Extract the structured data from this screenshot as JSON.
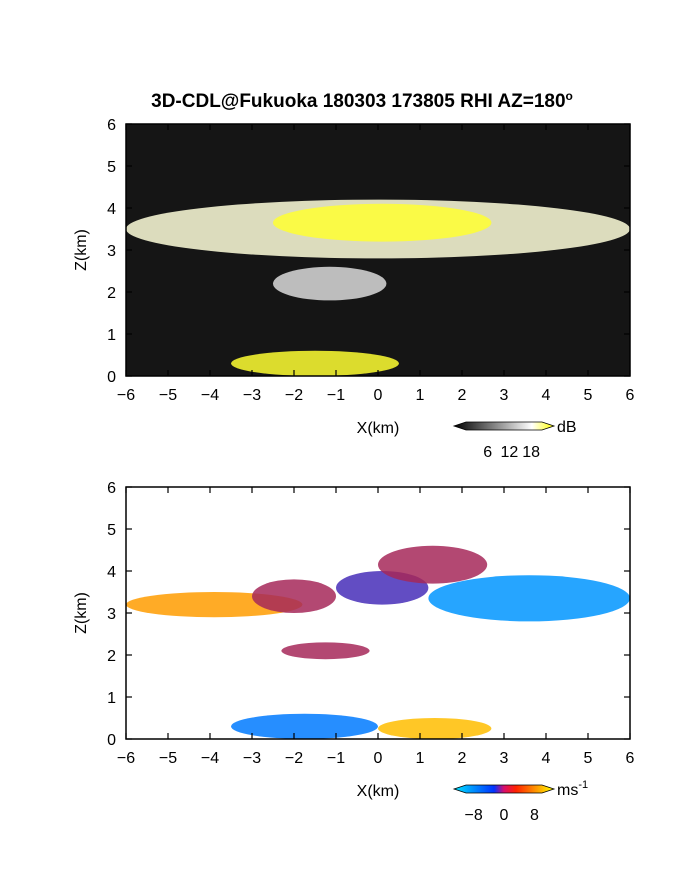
{
  "title": "3D-CDL@Fukuoka 180303 173805 RHI AZ=180",
  "title_degree": "o",
  "chart_data": [
    {
      "type": "heatmap",
      "panel": "reflectivity",
      "xlabel": "X(km)",
      "ylabel": "Z(km)",
      "xlim": [
        -6,
        6
      ],
      "ylim": [
        0,
        6
      ],
      "x_ticks": [
        "-6",
        "-5",
        "-4",
        "-3",
        "-2",
        "-1",
        "0",
        "1",
        "2",
        "3",
        "4",
        "5",
        "6"
      ],
      "y_ticks": [
        "0",
        "1",
        "2",
        "3",
        "4",
        "5",
        "6"
      ],
      "background": "#151515",
      "colorbar": {
        "unit": "dB",
        "ticks": [
          "6",
          "12",
          "18"
        ],
        "range": [
          0,
          21
        ],
        "colors": [
          "#000000",
          "#ffffff",
          "#ffff00"
        ]
      },
      "features": [
        {
          "name": "cloud layer",
          "x": [
            -6,
            6
          ],
          "z": [
            2.8,
            4.2
          ],
          "value": 12
        },
        {
          "name": "strong echo band",
          "x": [
            -2.5,
            2.7
          ],
          "z": [
            3.2,
            4.1
          ],
          "value": 19
        },
        {
          "name": "virga",
          "x": [
            -2.5,
            0.2
          ],
          "z": [
            1.8,
            2.6
          ],
          "value": 9
        },
        {
          "name": "surface echo",
          "x": [
            -3.5,
            0.5
          ],
          "z": [
            0,
            0.6
          ],
          "value": 19
        }
      ]
    },
    {
      "type": "heatmap",
      "panel": "doppler_velocity",
      "xlabel": "X(km)",
      "ylabel": "Z(km)",
      "xlim": [
        -6,
        6
      ],
      "ylim": [
        0,
        6
      ],
      "x_ticks": [
        "-6",
        "-5",
        "-4",
        "-3",
        "-2",
        "-1",
        "0",
        "1",
        "2",
        "3",
        "4",
        "5",
        "6"
      ],
      "y_ticks": [
        "0",
        "1",
        "2",
        "3",
        "4",
        "5",
        "6"
      ],
      "background": "#ffffff",
      "colorbar": {
        "unit": "ms",
        "unit_exponent": "-1",
        "ticks": [
          "-8",
          "0",
          "8"
        ],
        "range": [
          -10,
          10
        ],
        "colors": [
          "#00e5ff",
          "#0033ff",
          "#ff2200",
          "#ffff00"
        ]
      },
      "features": [
        {
          "name": "west layer",
          "x": [
            -6,
            -1.8
          ],
          "z": [
            2.9,
            3.5
          ],
          "value": 7
        },
        {
          "name": "transition",
          "x": [
            -3,
            -1
          ],
          "z": [
            3,
            3.8
          ],
          "value": 1
        },
        {
          "name": "core",
          "x": [
            -1,
            1.2
          ],
          "z": [
            3.2,
            4
          ],
          "value": -1.5
        },
        {
          "name": "upper red",
          "x": [
            0,
            2.6
          ],
          "z": [
            3.7,
            4.6
          ],
          "value": 1
        },
        {
          "name": "east layer",
          "x": [
            1.2,
            6
          ],
          "z": [
            2.8,
            3.9
          ],
          "value": -7
        },
        {
          "name": "virga",
          "x": [
            -2.3,
            -0.2
          ],
          "z": [
            1.9,
            2.3
          ],
          "value": 1
        },
        {
          "name": "surface west",
          "x": [
            -3.5,
            0
          ],
          "z": [
            0,
            0.6
          ],
          "value": -6
        },
        {
          "name": "surface east",
          "x": [
            0,
            2.7
          ],
          "z": [
            0,
            0.5
          ],
          "value": 8
        }
      ]
    }
  ]
}
